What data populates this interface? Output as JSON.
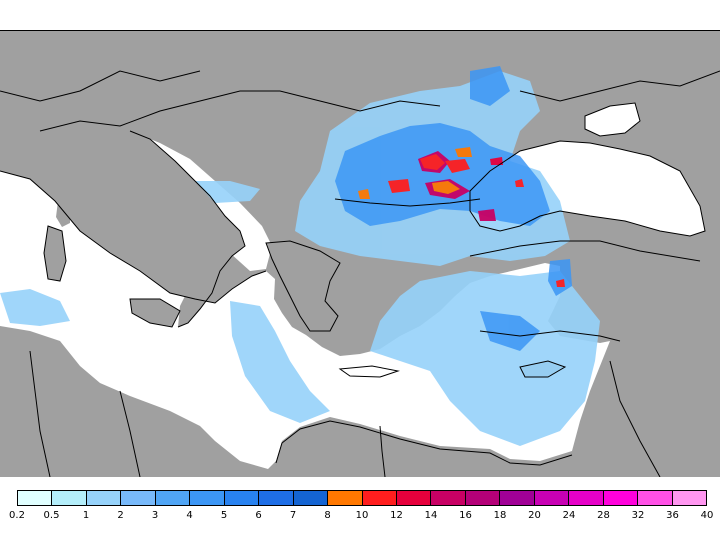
{
  "map": {
    "land_color": "#a0a0a0",
    "sea_color": "#ffffff",
    "border_color": "#000000"
  },
  "legend": {
    "labels": [
      "0.2",
      "0.5",
      "1",
      "2",
      "3",
      "4",
      "5",
      "6",
      "7",
      "8",
      "10",
      "12",
      "14",
      "16",
      "18",
      "20",
      "24",
      "28",
      "32",
      "36",
      "40"
    ],
    "colors": [
      "#e0ffff",
      "#b4eefa",
      "#96d2fa",
      "#78b9fa",
      "#50a5f5",
      "#3c96f5",
      "#2882f0",
      "#1e6ee6",
      "#1464d2",
      "#ff7800",
      "#ff1e1e",
      "#e6003c",
      "#c80064",
      "#b40078",
      "#a00096",
      "#c800b4",
      "#e600c8",
      "#ff00dc",
      "#ff50e6",
      "#ff96f0"
    ]
  }
}
